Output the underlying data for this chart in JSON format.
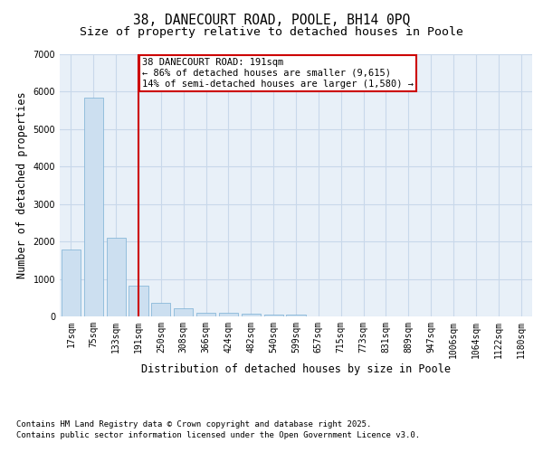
{
  "title_line1": "38, DANECOURT ROAD, POOLE, BH14 0PQ",
  "title_line2": "Size of property relative to detached houses in Poole",
  "xlabel": "Distribution of detached houses by size in Poole",
  "ylabel": "Number of detached properties",
  "categories": [
    "17sqm",
    "75sqm",
    "133sqm",
    "191sqm",
    "250sqm",
    "308sqm",
    "366sqm",
    "424sqm",
    "482sqm",
    "540sqm",
    "599sqm",
    "657sqm",
    "715sqm",
    "773sqm",
    "831sqm",
    "889sqm",
    "947sqm",
    "1006sqm",
    "1064sqm",
    "1122sqm",
    "1180sqm"
  ],
  "values": [
    1780,
    5850,
    2100,
    830,
    370,
    220,
    100,
    85,
    70,
    50,
    50,
    0,
    0,
    0,
    0,
    0,
    0,
    0,
    0,
    0,
    0
  ],
  "bar_color": "#ccdff0",
  "bar_edge_color": "#7aafd4",
  "highlight_index": 3,
  "highlight_line_color": "#cc0000",
  "annotation_text": "38 DANECOURT ROAD: 191sqm\n← 86% of detached houses are smaller (9,615)\n14% of semi-detached houses are larger (1,580) →",
  "annotation_box_color": "#cc0000",
  "ylim": [
    0,
    7000
  ],
  "yticks": [
    0,
    1000,
    2000,
    3000,
    4000,
    5000,
    6000,
    7000
  ],
  "grid_color": "#c8d8ea",
  "background_color": "#e8f0f8",
  "footer_line1": "Contains HM Land Registry data © Crown copyright and database right 2025.",
  "footer_line2": "Contains public sector information licensed under the Open Government Licence v3.0.",
  "title_fontsize": 10.5,
  "subtitle_fontsize": 9.5,
  "axis_label_fontsize": 8.5,
  "tick_fontsize": 7,
  "annotation_fontsize": 7.5,
  "footer_fontsize": 6.5
}
